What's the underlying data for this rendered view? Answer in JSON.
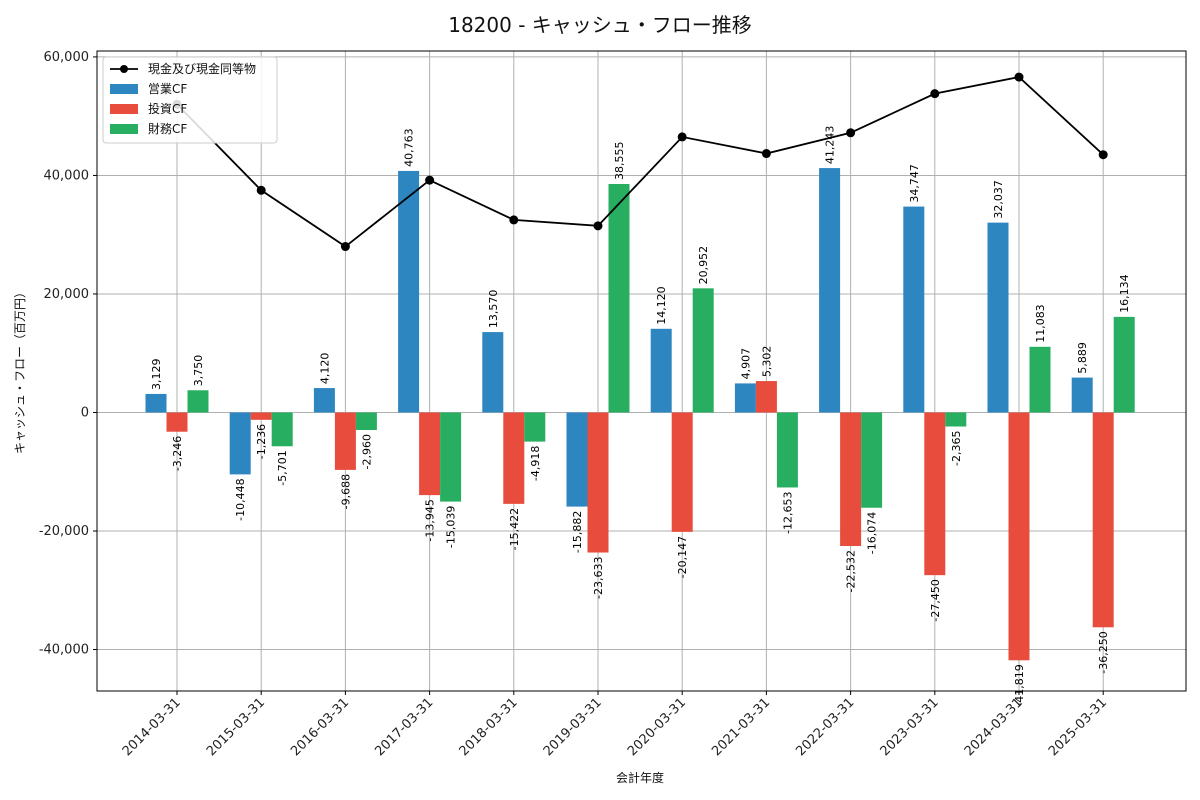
{
  "chart_data": {
    "type": "bar",
    "title": "18200 - キャッシュ・フロー推移",
    "xlabel": "会計年度",
    "ylabel": "キャッシュ・フロー（百万円）",
    "ylim": [
      -47000,
      61000
    ],
    "yticks": [
      -40000,
      -20000,
      0,
      20000,
      40000,
      60000
    ],
    "ytick_labels": [
      "-40,000",
      "-20,000",
      "0",
      "20,000",
      "40,000",
      "60,000"
    ],
    "grid": true,
    "legend_position": "top-left",
    "categories": [
      "2014-03-31",
      "2015-03-31",
      "2016-03-31",
      "2017-03-31",
      "2018-03-31",
      "2019-03-31",
      "2020-03-31",
      "2021-03-31",
      "2022-03-31",
      "2023-03-31",
      "2024-03-31",
      "2025-03-31"
    ],
    "series": [
      {
        "name": "営業CF",
        "type": "bar",
        "color": "#2e86c1",
        "values": [
          3129,
          -10448,
          4120,
          40763,
          13570,
          -15882,
          14120,
          4907,
          41243,
          34747,
          32037,
          5889
        ],
        "labels": [
          "3,129",
          "-10,448",
          "4,120",
          "40,763",
          "13,570",
          "-15,882",
          "14,120",
          "4,907",
          "41,243",
          "34,747",
          "32,037",
          "5,889"
        ]
      },
      {
        "name": "投資CF",
        "type": "bar",
        "color": "#e74c3c",
        "values": [
          -3246,
          -1236,
          -9688,
          -13945,
          -15422,
          -23633,
          -20147,
          5302,
          -22532,
          -27450,
          -41819,
          -36250
        ],
        "labels": [
          "-3,246",
          "-1,236",
          "-9,688",
          "-13,945",
          "-15,422",
          "-23,633",
          "-20,147",
          "5,302",
          "-22,532",
          "-27,450",
          "-41,819",
          "-36,250"
        ]
      },
      {
        "name": "財務CF",
        "type": "bar",
        "color": "#27ae60",
        "values": [
          3750,
          -5701,
          -2960,
          -15039,
          -4918,
          38555,
          20952,
          -12653,
          -16074,
          -2365,
          11083,
          16134
        ],
        "labels": [
          "3,750",
          "-5,701",
          "-2,960",
          "-15,039",
          "-4,918",
          "38,555",
          "20,952",
          "-12,653",
          "-16,074",
          "-2,365",
          "11,083",
          "16,134"
        ]
      },
      {
        "name": "現金及び現金同等物",
        "type": "line",
        "color": "#000000",
        "values": [
          52000,
          37500,
          28000,
          39200,
          32500,
          31500,
          46500,
          43700,
          47200,
          53800,
          56600,
          43500
        ]
      }
    ]
  }
}
